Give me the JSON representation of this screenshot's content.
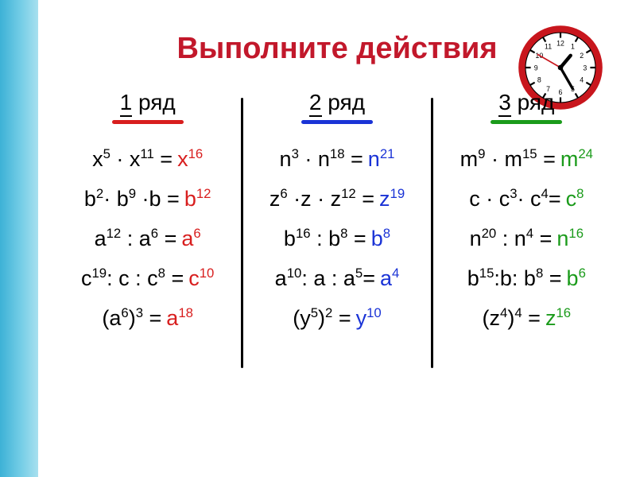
{
  "title": {
    "text": "Выполните действия",
    "color": "#c2182b",
    "fontsize": 38
  },
  "clock": {
    "rim_color": "#c8161d",
    "face_color": "#ffffff",
    "tick_color": "#000000",
    "hour_hand_angle": 40,
    "minute_hand_angle": 150,
    "second_hand_color": "#c8161d",
    "second_hand_angle": 300
  },
  "layout": {
    "header_fontsize": 28,
    "expr_fontsize": 27,
    "answer_fontsize": 27,
    "underline_colors": [
      "#d81e1e",
      "#1a33d6",
      "#1b9b1b"
    ],
    "answer_colors": [
      "#d81e1e",
      "#1a33d6",
      "#1b9b1b"
    ]
  },
  "columns": [
    {
      "header_num": "1",
      "header_word": "ряд",
      "rows": [
        {
          "expr_html": "x<sup>5</sup> · x<sup>11</sup> =",
          "ans_html": "x<sup>16</sup>"
        },
        {
          "expr_html": "b<sup>2</sup>· b<sup>9</sup> ·b =",
          "ans_html": "b<sup>12</sup>"
        },
        {
          "expr_html": "a<sup>12</sup> :  a<sup>6</sup>  =",
          "ans_html": "a<sup>6</sup>"
        },
        {
          "expr_html": "c<sup>19</sup>: c : c<sup>8</sup> =",
          "ans_html": "c<sup>10</sup>"
        },
        {
          "expr_html": "(a<sup>6</sup>)<sup>3</sup>   =",
          "ans_html": "a<sup>18</sup>"
        }
      ]
    },
    {
      "header_num": "2",
      "header_word": "ряд",
      "rows": [
        {
          "expr_html": "n<sup>3</sup> · n<sup>18</sup> =",
          "ans_html": "n<sup>21</sup>"
        },
        {
          "expr_html": "z<sup>6</sup> ·z · z<sup>12</sup> =",
          "ans_html": "z<sup>19</sup>"
        },
        {
          "expr_html": "b<sup>16</sup> :  b<sup>8</sup>  =",
          "ans_html": "b<sup>8</sup>"
        },
        {
          "expr_html": "a<sup>10</sup>: a : a<sup>5</sup>=",
          "ans_html": "a<sup>4</sup>"
        },
        {
          "expr_html": "(y<sup>5</sup>)<sup>2</sup>   =",
          "ans_html": "y<sup>10</sup>"
        }
      ]
    },
    {
      "header_num": "3",
      "header_word": "ряд",
      "rows": [
        {
          "expr_html": "m<sup>9</sup> · m<sup>15</sup> =",
          "ans_html": "m<sup>24</sup>"
        },
        {
          "expr_html": "c · c<sup>3</sup>· c<sup>4</sup>=",
          "ans_html": "c<sup>8</sup>"
        },
        {
          "expr_html": "n<sup>20</sup> :  n<sup>4</sup>  =",
          "ans_html": "n<sup>16</sup>"
        },
        {
          "expr_html": "b<sup>15</sup>:b: b<sup>8</sup> =",
          "ans_html": "b<sup>6</sup>"
        },
        {
          "expr_html": "(z<sup>4</sup>)<sup>4</sup>  =",
          "ans_html": "z<sup>16</sup>"
        }
      ]
    }
  ]
}
